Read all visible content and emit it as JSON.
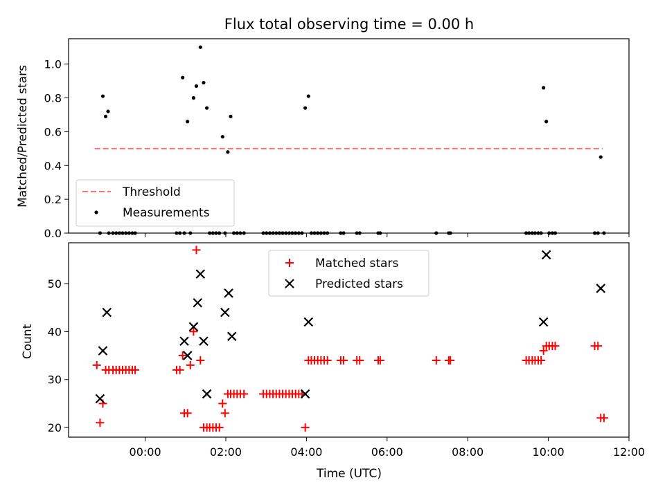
{
  "chart_data": [
    {
      "type": "scatter",
      "title": "Flux total observing time = 0.00 h",
      "xlabel": "",
      "ylabel": "Matched/Predicted stars",
      "xlim": [
        -1.9,
        12.0
      ],
      "ylim": [
        0.0,
        1.15
      ],
      "yticks": [
        0.0,
        0.2,
        0.4,
        0.6,
        0.8,
        1.0
      ],
      "ytick_labels": [
        "0.0",
        "0.2",
        "0.4",
        "0.6",
        "0.8",
        "1.0"
      ],
      "legend_position": "lower-left",
      "threshold": {
        "name": "Threshold",
        "y": 0.5,
        "x_range": [
          -1.25,
          11.35
        ],
        "color": "#ff7070",
        "style": "dashed"
      },
      "series": [
        {
          "name": "Measurements",
          "color": "#000000",
          "marker": "dot",
          "x": [
            -1.12,
            -1.05,
            -0.98,
            -0.92,
            -0.9,
            -0.8,
            -0.72,
            -0.64,
            -0.56,
            -0.48,
            -0.4,
            -0.32,
            -0.25,
            0.78,
            0.86,
            0.93,
            0.97,
            1.05,
            1.12,
            1.2,
            1.27,
            1.37,
            1.45,
            1.53,
            1.6,
            1.68,
            1.76,
            1.84,
            1.92,
            1.98,
            2.05,
            2.12,
            2.2,
            2.28,
            2.36,
            2.45,
            2.93,
            3.01,
            3.09,
            3.17,
            3.25,
            3.33,
            3.41,
            3.49,
            3.57,
            3.65,
            3.73,
            3.81,
            3.89,
            3.97,
            4.05,
            4.12,
            4.2,
            4.28,
            4.36,
            4.44,
            4.52,
            4.85,
            4.92,
            5.25,
            5.32,
            5.78,
            5.83,
            7.22,
            7.53,
            7.57,
            9.45,
            9.52,
            9.6,
            9.67,
            9.75,
            9.82,
            9.88,
            9.95,
            10.02,
            10.1,
            10.17,
            11.15,
            11.23,
            11.3,
            11.38
          ],
          "y": [
            0,
            0.81,
            0.69,
            0.72,
            0,
            0,
            0,
            0,
            0,
            0,
            0,
            0,
            0,
            0,
            0,
            0.92,
            0,
            0.66,
            0,
            0.8,
            0.87,
            1.1,
            0.89,
            0.74,
            0,
            0,
            0,
            0,
            0.57,
            0,
            0.48,
            0.69,
            0,
            0,
            0,
            0,
            0,
            0,
            0,
            0,
            0,
            0,
            0,
            0,
            0,
            0,
            0,
            0,
            0,
            0.74,
            0.81,
            0,
            0,
            0,
            0,
            0,
            0,
            0,
            0,
            0,
            0,
            0,
            0,
            0,
            0,
            0,
            0,
            0,
            0,
            0,
            0,
            0,
            0.86,
            0.66,
            0,
            0,
            0,
            0,
            0,
            0.45,
            0
          ]
        }
      ]
    },
    {
      "type": "scatter",
      "title": "",
      "xlabel": "Time (UTC)",
      "ylabel": "Count",
      "xlim": [
        -1.9,
        12.0
      ],
      "ylim": [
        18,
        58.5
      ],
      "yticks": [
        20,
        30,
        40,
        50
      ],
      "ytick_labels": [
        "20",
        "30",
        "40",
        "50"
      ],
      "xticks": [
        0,
        2,
        4,
        6,
        8,
        10,
        12
      ],
      "xtick_labels": [
        "00:00",
        "02:00",
        "04:00",
        "06:00",
        "08:00",
        "10:00",
        "12:00"
      ],
      "legend_position": "upper-center",
      "series": [
        {
          "name": "Matched stars",
          "color": "#ff0000",
          "marker": "plus",
          "x": [
            -1.2,
            -1.12,
            -1.05,
            -0.98,
            -0.9,
            -0.8,
            -0.72,
            -0.64,
            -0.56,
            -0.48,
            -0.4,
            -0.32,
            -0.25,
            0.78,
            0.86,
            0.93,
            0.97,
            1.05,
            1.12,
            1.2,
            1.27,
            1.37,
            1.45,
            1.53,
            1.6,
            1.68,
            1.76,
            1.84,
            1.92,
            1.98,
            2.05,
            2.12,
            2.2,
            2.28,
            2.36,
            2.45,
            2.93,
            3.01,
            3.09,
            3.17,
            3.25,
            3.33,
            3.41,
            3.49,
            3.57,
            3.65,
            3.73,
            3.81,
            3.89,
            3.97,
            4.05,
            4.12,
            4.2,
            4.28,
            4.36,
            4.44,
            4.52,
            4.85,
            4.92,
            5.25,
            5.32,
            5.78,
            5.83,
            7.22,
            7.53,
            7.57,
            9.45,
            9.52,
            9.6,
            9.67,
            9.75,
            9.82,
            9.88,
            9.95,
            10.02,
            10.1,
            10.17,
            11.15,
            11.23,
            11.3,
            11.38
          ],
          "y": [
            33,
            21,
            25,
            32,
            32,
            32,
            32,
            32,
            32,
            32,
            32,
            32,
            32,
            32,
            32,
            35,
            23,
            23,
            33,
            40,
            57,
            34,
            20,
            20,
            20,
            20,
            20,
            20,
            25,
            23,
            27,
            27,
            27,
            27,
            27,
            27,
            27,
            27,
            27,
            27,
            27,
            27,
            27,
            27,
            27,
            27,
            27,
            27,
            27,
            20,
            34,
            34,
            34,
            34,
            34,
            34,
            34,
            34,
            34,
            34,
            34,
            34,
            34,
            34,
            34,
            34,
            34,
            34,
            34,
            34,
            34,
            34,
            36,
            37,
            37,
            37,
            37,
            37,
            37,
            22,
            22
          ]
        },
        {
          "name": "Predicted stars",
          "color": "#000000",
          "marker": "x",
          "x": [
            -1.12,
            -1.05,
            -0.95,
            0.97,
            1.05,
            1.2,
            1.3,
            1.37,
            1.45,
            1.53,
            1.98,
            2.07,
            2.15,
            3.97,
            4.05,
            9.88,
            9.95,
            11.3
          ],
          "y": [
            26,
            36,
            44,
            38,
            35,
            41,
            46,
            52,
            38,
            27,
            44,
            48,
            39,
            27,
            42,
            42,
            56,
            49
          ]
        }
      ]
    }
  ]
}
